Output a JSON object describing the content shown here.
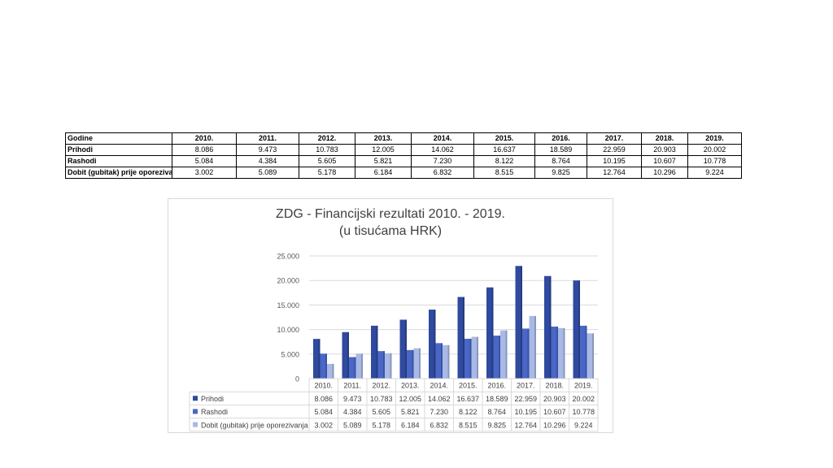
{
  "table": {
    "header_label": "Godine",
    "years": [
      "2010.",
      "2011.",
      "2012.",
      "2013.",
      "2014.",
      "2015.",
      "2016.",
      "2017.",
      "2018.",
      "2019."
    ],
    "rows": [
      {
        "label": "Prihodi",
        "values": [
          "8.086",
          "9.473",
          "10.783",
          "12.005",
          "14.062",
          "16.637",
          "18.589",
          "22.959",
          "20.903",
          "20.002"
        ]
      },
      {
        "label": "Rashodi",
        "values": [
          "5.084",
          "4.384",
          "5.605",
          "5.821",
          "7.230",
          "8.122",
          "8.764",
          "10.195",
          "10.607",
          "10.778"
        ]
      },
      {
        "label": "Dobit (gubitak) prije oporezivanja",
        "values": [
          "3.002",
          "5.089",
          "5.178",
          "6.184",
          "6.832",
          "8.515",
          "9.825",
          "12.764",
          "10.296",
          "9.224"
        ]
      }
    ]
  },
  "chart_data": {
    "type": "bar",
    "title_line1": "ZDG - Financijski rezultati 2010. - 2019.",
    "title_line2": "(u tisućama HRK)",
    "categories": [
      "2010.",
      "2011.",
      "2012.",
      "2013.",
      "2014.",
      "2015.",
      "2016.",
      "2017.",
      "2018.",
      "2019."
    ],
    "series": [
      {
        "name": "Prihodi",
        "values": [
          8086,
          9473,
          10783,
          12005,
          14062,
          16637,
          18589,
          22959,
          20903,
          20002
        ],
        "labels": [
          "8.086",
          "9.473",
          "10.783",
          "12.005",
          "14.062",
          "16.637",
          "18.589",
          "22.959",
          "20.903",
          "20.002"
        ],
        "color": "#2f4a9e"
      },
      {
        "name": "Rashodi",
        "values": [
          5084,
          4384,
          5605,
          5821,
          7230,
          8122,
          8764,
          10195,
          10607,
          10778
        ],
        "labels": [
          "5.084",
          "4.384",
          "5.605",
          "5.821",
          "7.230",
          "8.122",
          "8.764",
          "10.195",
          "10.607",
          "10.778"
        ],
        "color": "#4a67c7"
      },
      {
        "name": "Dobit (gubitak) prije oporezivanja",
        "values": [
          3002,
          5089,
          5178,
          6184,
          6832,
          8515,
          9825,
          12764,
          10296,
          9224
        ],
        "labels": [
          "3.002",
          "5.089",
          "5.178",
          "6.184",
          "6.832",
          "8.515",
          "9.825",
          "12.764",
          "10.296",
          "9.224"
        ],
        "color": "#a9b9e6"
      }
    ],
    "y_ticks": [
      0,
      5000,
      10000,
      15000,
      20000,
      25000
    ],
    "y_tick_labels": [
      "0",
      "5.000",
      "10.000",
      "15.000",
      "20.000",
      "25.000"
    ],
    "ylim": [
      0,
      25000
    ],
    "grid": true,
    "legend": "data-table-below"
  }
}
